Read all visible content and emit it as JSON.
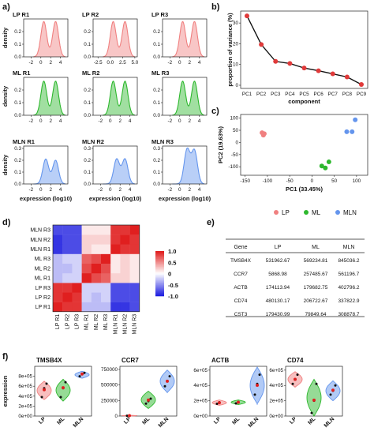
{
  "panel_labels": [
    "a)",
    "b)",
    "c)",
    "d)",
    "e)",
    "f)"
  ],
  "chart_data": [
    {
      "id": "density",
      "type": "area",
      "ylabel": "density",
      "xlabel": "expression (log10)",
      "ylim": [
        0,
        0.3
      ],
      "yticks": [
        "0.0",
        "0.1",
        "0.2"
      ],
      "colors": {
        "LP": "#f08080",
        "ML": "#2eb82e",
        "MLN": "#6495ed"
      },
      "grid": [
        [
          {
            "title": "LP R1",
            "group": "LP",
            "peaks": [
              [
                0.6,
                0.28
              ],
              [
                3.0,
                0.28
              ]
            ],
            "xticks": [
              "-2",
              "0",
              "2",
              "4"
            ]
          },
          {
            "title": "LP R2",
            "group": "LP",
            "peaks": [
              [
                0.6,
                0.28
              ],
              [
                3.0,
                0.28
              ]
            ],
            "xticks": [
              "-2.5",
              "0.0",
              "2.5",
              "5.0"
            ]
          },
          {
            "title": "LP R3",
            "group": "LP",
            "peaks": [
              [
                0.6,
                0.28
              ],
              [
                3.0,
                0.28
              ]
            ],
            "xticks": [
              "-2",
              "0",
              "2",
              "4"
            ]
          }
        ],
        [
          {
            "title": "ML R1",
            "group": "ML",
            "peaks": [
              [
                0.6,
                0.27
              ],
              [
                3.0,
                0.27
              ]
            ],
            "xticks": [
              "-2",
              "0",
              "2",
              "4"
            ]
          },
          {
            "title": "ML R2",
            "group": "ML",
            "peaks": [
              [
                0.6,
                0.27
              ],
              [
                3.0,
                0.27
              ]
            ],
            "xticks": [
              "-2",
              "0",
              "2",
              "4"
            ]
          },
          {
            "title": "ML R3",
            "group": "ML",
            "peaks": [
              [
                0.6,
                0.27
              ],
              [
                3.0,
                0.27
              ]
            ],
            "xticks": [
              "-2",
              "0",
              "2",
              "4"
            ]
          }
        ],
        [
          {
            "title": "MLN R1",
            "group": "MLN",
            "peaks": [
              [
                1.0,
                0.21
              ],
              [
                3.0,
                0.2
              ]
            ],
            "xticks": [
              "-2",
              "0",
              "2",
              "4"
            ]
          },
          {
            "title": "MLN R2",
            "group": "MLN",
            "peaks": [
              [
                1.3,
                0.21
              ],
              [
                3.0,
                0.21
              ]
            ],
            "xticks": [
              "-2",
              "0",
              "2",
              "4"
            ]
          },
          {
            "title": "MLN R3",
            "group": "MLN",
            "peaks": [
              [
                1.5,
                0.29
              ],
              [
                3.0,
                0.28
              ]
            ],
            "xticks": [
              "-2",
              "0",
              "2",
              "4"
            ]
          }
        ]
      ],
      "yticks_mln": [
        "0.0",
        "0.1",
        "0.2",
        "0.3"
      ]
    },
    {
      "id": "variance",
      "type": "line",
      "ylabel": "proportion of variance (%)",
      "xlabel": "component",
      "categories": [
        "PC1",
        "PC2",
        "PC3",
        "PC4",
        "PC5",
        "PC6",
        "PC7",
        "PC8",
        "PC9"
      ],
      "values": [
        33.45,
        19.63,
        11.5,
        10.5,
        8.3,
        7.0,
        5.5,
        4.0,
        0.4
      ],
      "ylim": [
        0,
        35
      ],
      "yticks": [
        0,
        10,
        20,
        30
      ],
      "color": "#e03a3a"
    },
    {
      "id": "pca",
      "type": "scatter",
      "xlabel": "PC1 (33.45%)",
      "ylabel": "PC2 (19.63%)",
      "xlim": [
        -160,
        125
      ],
      "ylim": [
        -135,
        115
      ],
      "xticks": [
        -150,
        -100,
        -50,
        0,
        50,
        100
      ],
      "yticks": [
        -100,
        -50,
        0,
        50,
        100
      ],
      "series": [
        {
          "name": "LP",
          "color": "#f08080",
          "points": [
            [
              -112,
              40
            ],
            [
              -109,
              30
            ],
            [
              -107,
              36
            ]
          ]
        },
        {
          "name": "ML",
          "color": "#2eb82e",
          "points": [
            [
              22,
              -97
            ],
            [
              30,
              -105
            ],
            [
              38,
              -80
            ]
          ]
        },
        {
          "name": "MLN",
          "color": "#6495ed",
          "points": [
            [
              78,
              44
            ],
            [
              90,
              44
            ],
            [
              97,
              93
            ]
          ]
        }
      ]
    },
    {
      "id": "correlation",
      "type": "heatmap",
      "labels": [
        "LP R1",
        "LP R2",
        "LP R3",
        "ML R1",
        "ML R2",
        "ML R3",
        "MLN R1",
        "MLN R2",
        "MLN R3"
      ],
      "matrix": [
        [
          1.0,
          0.9,
          0.9,
          -0.3,
          -0.3,
          -0.3,
          -0.9,
          -0.9,
          -0.8
        ],
        [
          0.9,
          1.0,
          0.9,
          -0.2,
          -0.3,
          -0.2,
          -0.8,
          -0.8,
          -0.8
        ],
        [
          0.9,
          0.9,
          1.0,
          -0.2,
          -0.2,
          -0.2,
          -0.8,
          -0.8,
          -0.8
        ],
        [
          -0.3,
          -0.2,
          -0.2,
          1.0,
          0.8,
          0.7,
          0.2,
          0.2,
          0.1
        ],
        [
          -0.3,
          -0.3,
          -0.2,
          0.8,
          1.0,
          0.8,
          0.1,
          0.2,
          0.1
        ],
        [
          -0.3,
          -0.2,
          -0.2,
          0.7,
          0.8,
          1.0,
          0.1,
          0.2,
          0.1
        ],
        [
          -0.9,
          -0.8,
          -0.8,
          0.2,
          0.1,
          0.1,
          1.0,
          0.9,
          0.9
        ],
        [
          -0.9,
          -0.8,
          -0.8,
          0.2,
          0.2,
          0.2,
          0.9,
          1.0,
          0.9
        ],
        [
          -0.8,
          -0.8,
          -0.8,
          0.1,
          0.1,
          0.1,
          0.9,
          0.9,
          1.0
        ]
      ],
      "colorbar_ticks": [
        "1.0",
        "0.5",
        "0",
        "-0.5",
        "-1.0"
      ],
      "colors": {
        "neg": "#1f1fe0",
        "mid": "#ffffff",
        "pos": "#e01f1f"
      }
    },
    {
      "id": "table",
      "type": "table",
      "columns": [
        "Gene",
        "LP",
        "ML",
        "MLN"
      ],
      "rows": [
        [
          "TMSB4X",
          "531962.67",
          "569234.81",
          "845036.2"
        ],
        [
          "CCR7",
          "5868.98",
          "257485.67",
          "561196.7"
        ],
        [
          "ACTB",
          "174113.94",
          "179682.75",
          "402796.2"
        ],
        [
          "CD74",
          "480130.17",
          "206722.67",
          "337822.9"
        ],
        [
          "CST3",
          "179430.99",
          "79849.64",
          "308878.7"
        ]
      ]
    },
    {
      "id": "violins",
      "type": "violin",
      "ylabel": "expression",
      "groups": [
        "LP",
        "ML",
        "MLN"
      ],
      "colors": {
        "LP": "#f08080",
        "ML": "#2eb82e",
        "MLN": "#6495ed"
      },
      "panels": [
        {
          "title": "TMSB4X",
          "ylim": [
            0,
            1000000
          ],
          "yticks": [
            [
              0,
              "0e+00"
            ],
            [
              200000,
              "2e+05"
            ],
            [
              400000,
              "4e+05"
            ],
            [
              600000,
              "6e+05"
            ],
            [
              800000,
              "8e+05"
            ]
          ],
          "violins": [
            {
              "range": [
                330000,
                700000
              ],
              "mean": 530000,
              "points": [
                380000,
                560000,
                650000
              ]
            },
            {
              "range": [
                300000,
                740000
              ],
              "mean": 570000,
              "points": [
                380000,
                560000,
                680000
              ]
            },
            {
              "range": [
                760000,
                900000
              ],
              "mean": 845000,
              "points": [
                800000,
                845000,
                870000
              ]
            }
          ]
        },
        {
          "title": "CCR7",
          "ylim": [
            0,
            800000
          ],
          "yticks": [
            [
              0,
              "0"
            ],
            [
              250000,
              "250000"
            ],
            [
              500000,
              "500000"
            ],
            [
              750000,
              "750000"
            ]
          ],
          "violins": [
            {
              "range": [
                0,
                12000
              ],
              "mean": 6000,
              "points": [
                4000,
                7000
              ]
            },
            {
              "range": [
                120000,
                400000
              ],
              "mean": 257000,
              "points": [
                200000,
                240000,
                280000
              ]
            },
            {
              "range": [
                380000,
                740000
              ],
              "mean": 561000,
              "points": [
                480000,
                560000,
                640000
              ]
            }
          ]
        },
        {
          "title": "ACTB",
          "ylim": [
            0,
            650000
          ],
          "yticks": [
            [
              0,
              "0e+00"
            ],
            [
              200000,
              "2e+05"
            ],
            [
              400000,
              "4e+05"
            ],
            [
              600000,
              "6e+05"
            ]
          ],
          "violins": [
            {
              "range": [
                140000,
                210000
              ],
              "mean": 174000,
              "points": [
                160000,
                180000
              ]
            },
            {
              "range": [
                150000,
                210000
              ],
              "mean": 180000,
              "points": [
                165000,
                185000
              ]
            },
            {
              "range": [
                160000,
                640000
              ],
              "mean": 403000,
              "points": [
                280000,
                420000,
                540000
              ]
            }
          ]
        },
        {
          "title": "CD74",
          "ylim": [
            0,
            650000
          ],
          "yticks": [
            [
              0,
              "0e+00"
            ],
            [
              200000,
              "2e+05"
            ],
            [
              400000,
              "4e+05"
            ],
            [
              600000,
              "6e+05"
            ]
          ],
          "violins": [
            {
              "range": [
                380000,
                580000
              ],
              "mean": 480000,
              "points": [
                420000,
                480000,
                540000
              ]
            },
            {
              "range": [
                0,
                480000
              ],
              "mean": 207000,
              "points": [
                40000,
                200000,
                420000
              ]
            },
            {
              "range": [
                200000,
                460000
              ],
              "mean": 338000,
              "points": [
                280000,
                330000,
                400000
              ]
            }
          ]
        }
      ]
    }
  ]
}
